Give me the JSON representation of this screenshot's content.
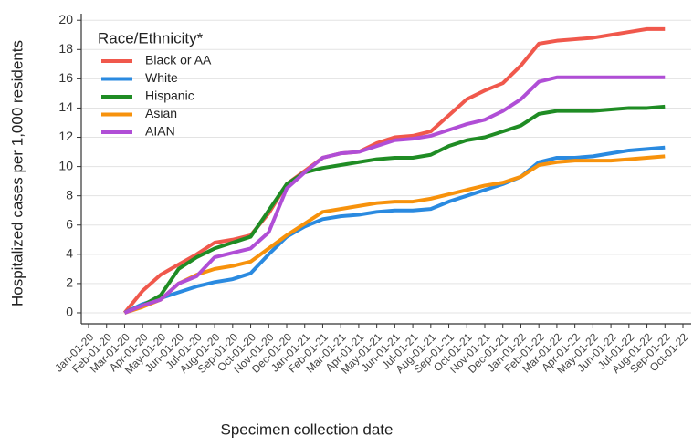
{
  "chart_data": {
    "type": "line",
    "x_label": "Specimen collection date",
    "y_label": "Hospitalized cases per 1,000 residents",
    "legend_title": "Race/Ethnicity*",
    "legend_position": "top-left",
    "grid": true,
    "x": [
      "Jan-01-20",
      "Feb-01-20",
      "Mar-01-20",
      "Apr-01-20",
      "May-01-20",
      "Jun-01-20",
      "Jul-01-20",
      "Aug-01-20",
      "Sep-01-20",
      "Oct-01-20",
      "Nov-01-20",
      "Dec-01-20",
      "Jan-01-21",
      "Feb-01-21",
      "Mar-01-21",
      "Apr-01-21",
      "May-01-21",
      "Jun-01-21",
      "Jul-01-21",
      "Aug-01-21",
      "Sep-01-21",
      "Oct-01-21",
      "Nov-01-21",
      "Dec-01-21",
      "Jan-01-22",
      "Feb-01-22",
      "Mar-01-22",
      "Apr-01-22",
      "May-01-22",
      "Jun-01-22",
      "Jul-01-22",
      "Aug-01-22",
      "Sep-01-22",
      "Oct-01-22"
    ],
    "ylim": [
      -0.75,
      20.45
    ],
    "yticks": [
      0,
      2,
      4,
      6,
      8,
      10,
      12,
      14,
      16,
      18,
      20
    ],
    "series": [
      {
        "name": "Black or AA",
        "color": "#f0584c",
        "values": [
          null,
          null,
          0,
          1.5,
          2.6,
          3.3,
          4.0,
          4.8,
          5.0,
          5.3,
          6.8,
          8.8,
          9.7,
          10.6,
          10.9,
          11.0,
          11.6,
          12.0,
          12.1,
          12.4,
          13.5,
          14.6,
          15.2,
          15.7,
          16.9,
          18.4,
          18.6,
          18.7,
          18.8,
          19.0,
          19.2,
          19.4,
          19.4,
          null
        ]
      },
      {
        "name": "White",
        "color": "#2a8ae0",
        "values": [
          null,
          null,
          0,
          0.6,
          1.0,
          1.4,
          1.8,
          2.1,
          2.3,
          2.7,
          4.0,
          5.2,
          5.9,
          6.4,
          6.6,
          6.7,
          6.9,
          7.0,
          7.0,
          7.1,
          7.6,
          8.0,
          8.4,
          8.8,
          9.3,
          10.3,
          10.6,
          10.6,
          10.7,
          10.9,
          11.1,
          11.2,
          11.3,
          null
        ]
      },
      {
        "name": "Hispanic",
        "color": "#1f8c24",
        "values": [
          null,
          null,
          0,
          0.5,
          1.2,
          3.0,
          3.8,
          4.4,
          4.8,
          5.2,
          7.0,
          8.8,
          9.6,
          9.9,
          10.1,
          10.3,
          10.5,
          10.6,
          10.6,
          10.8,
          11.4,
          11.8,
          12.0,
          12.4,
          12.8,
          13.6,
          13.8,
          13.8,
          13.8,
          13.9,
          14.0,
          14.0,
          14.1,
          null
        ]
      },
      {
        "name": "Asian",
        "color": "#f7920c",
        "values": [
          null,
          null,
          0,
          0.4,
          0.9,
          2.0,
          2.6,
          3.0,
          3.2,
          3.5,
          4.4,
          5.3,
          6.1,
          6.9,
          7.1,
          7.3,
          7.5,
          7.6,
          7.6,
          7.8,
          8.1,
          8.4,
          8.7,
          8.9,
          9.3,
          10.1,
          10.3,
          10.4,
          10.4,
          10.4,
          10.5,
          10.6,
          10.7,
          null
        ]
      },
      {
        "name": "AIAN",
        "color": "#b04ed6",
        "values": [
          null,
          null,
          0,
          0.5,
          0.9,
          2.0,
          2.5,
          3.8,
          4.1,
          4.4,
          5.5,
          8.5,
          9.6,
          10.6,
          10.9,
          11.0,
          11.4,
          11.8,
          11.9,
          12.1,
          12.5,
          12.9,
          13.2,
          13.8,
          14.6,
          15.8,
          16.1,
          16.1,
          16.1,
          16.1,
          16.1,
          16.1,
          16.1,
          null
        ]
      }
    ]
  }
}
